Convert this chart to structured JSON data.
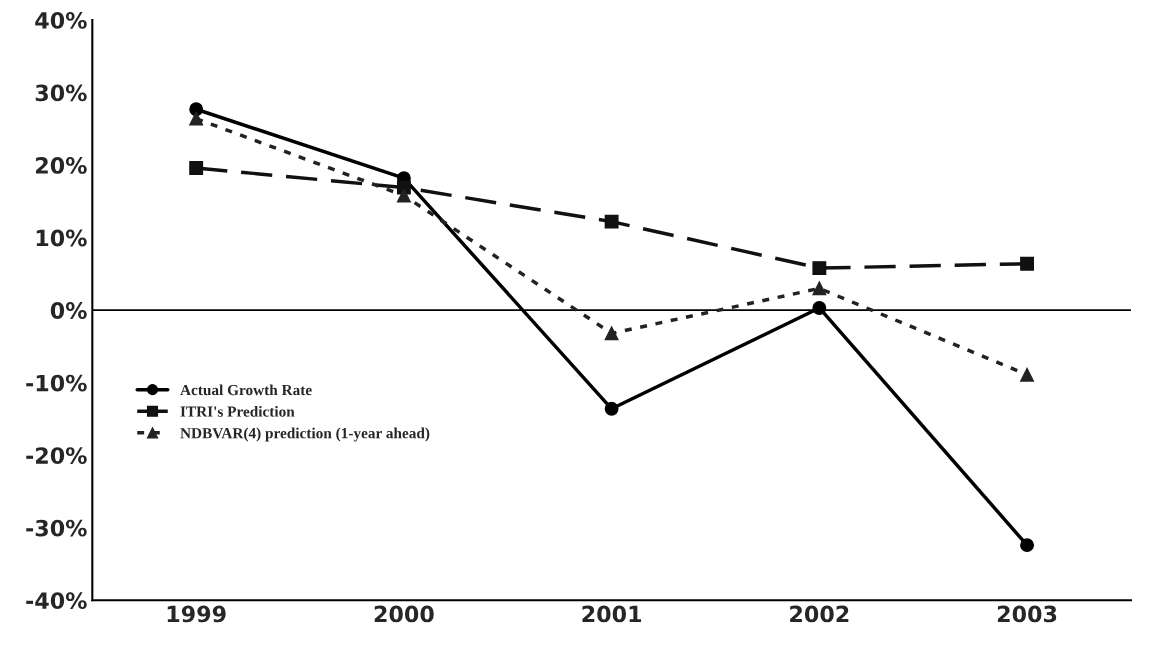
{
  "chart_data": {
    "type": "line",
    "categories": [
      "1999",
      "2000",
      "2001",
      "2002",
      "2003"
    ],
    "series": [
      {
        "name": "Actual Growth Rate",
        "color": "#000000",
        "values": [
          27.7,
          18.2,
          -13.6,
          0.3,
          -32.4
        ],
        "marker": "circle",
        "line_style": "solid"
      },
      {
        "name": "ITRI's Prediction",
        "color": "#111111",
        "values": [
          19.6,
          16.9,
          12.2,
          5.8,
          6.4
        ],
        "marker": "square",
        "line_style": "dashed"
      },
      {
        "name": "NDBVAR(4) prediction (1-year ahead)",
        "color": "#222222",
        "values": [
          26.4,
          15.8,
          -3.2,
          3.0,
          -8.9
        ],
        "marker": "triangle",
        "line_style": "dotted"
      }
    ],
    "ylim": [
      -40,
      40
    ],
    "yticks": [
      {
        "value": -40,
        "label": "-40%"
      },
      {
        "value": -30,
        "label": "-30%"
      },
      {
        "value": -20,
        "label": "-20%"
      },
      {
        "value": -10,
        "label": "-10%"
      },
      {
        "value": 0,
        "label": "0%"
      },
      {
        "value": 10,
        "label": "10%"
      },
      {
        "value": 20,
        "label": "20%"
      },
      {
        "value": 30,
        "label": "30%"
      },
      {
        "value": 40,
        "label": "40%"
      }
    ],
    "ref_lines": [
      {
        "axis": "y",
        "value": 0,
        "color": "#000000"
      }
    ],
    "grid": false,
    "legend": "bottom left"
  }
}
